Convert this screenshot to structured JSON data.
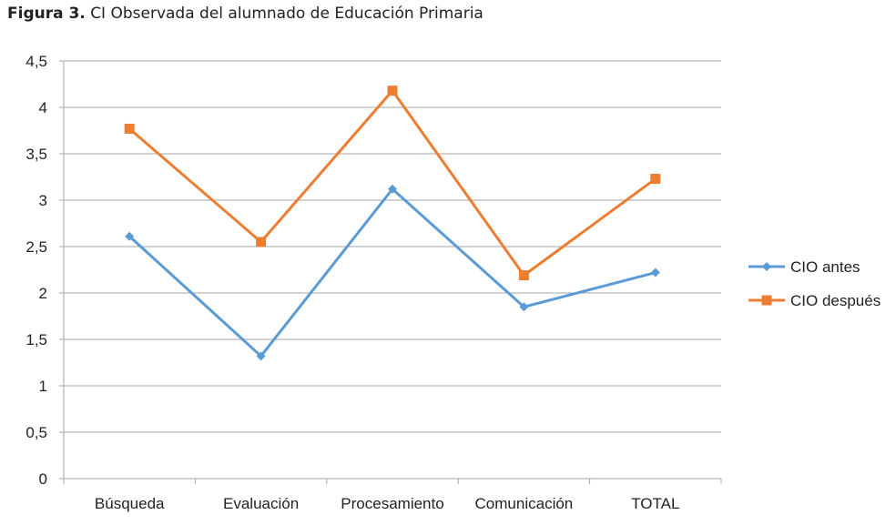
{
  "figure": {
    "label": "Figura 3.",
    "caption": "CI Observada del alumnado de Educación Primaria"
  },
  "chart_data": {
    "type": "line",
    "categories": [
      "Búsqueda",
      "Evaluación",
      "Procesamiento",
      "Comunicación",
      "TOTAL"
    ],
    "series": [
      {
        "name": "CIO antes",
        "color": "#5b9bd5",
        "marker": "diamond",
        "values": [
          2.61,
          1.32,
          3.12,
          1.85,
          2.22
        ]
      },
      {
        "name": "CIO después",
        "color": "#ed7d31",
        "marker": "square",
        "values": [
          3.77,
          2.55,
          4.18,
          2.19,
          3.23
        ]
      }
    ],
    "yticks": [
      "0",
      "0,5",
      "1",
      "1,5",
      "2",
      "2,5",
      "3",
      "3,5",
      "4",
      "4,5"
    ],
    "ylim": [
      0,
      4.5
    ],
    "grid": true,
    "legend_position": "right"
  }
}
